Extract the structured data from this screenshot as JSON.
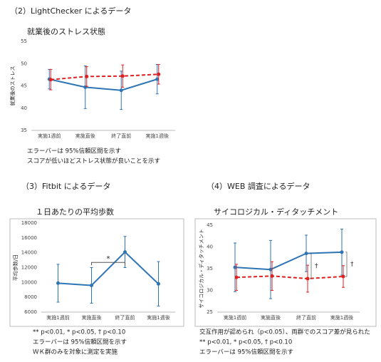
{
  "chart_data": [
    {
      "type": "line",
      "section": "（2）LightChecker によるデータ",
      "title": "就業後のストレス状態",
      "y_label": "就業後のストレス",
      "categories": [
        "実施1週前",
        "実施直後",
        "終了直前",
        "実施1週後"
      ],
      "series": [
        {
          "color": "#2e75b6",
          "dashed": false,
          "values": [
            46.5,
            44.7,
            44.0,
            46.5
          ],
          "error": [
            2.2,
            4.8,
            4.3,
            3.3
          ]
        },
        {
          "color": "#e02020",
          "dashed": true,
          "values": [
            46.4,
            47.1,
            47.2,
            47.6
          ],
          "error": [
            2.3,
            2.2,
            2.5,
            2.2
          ]
        }
      ],
      "ylim": [
        35,
        55
      ],
      "yticks": [
        35,
        40,
        45,
        50,
        55
      ],
      "frame": false,
      "notes": [
        "エラーバーは 95%信頼区間を示す",
        "スコアが低いほどストレス状態が良いことを示す"
      ],
      "annotations": []
    },
    {
      "type": "line",
      "section": "（3）Fitbit によるデータ",
      "title": "１日あたりの平均歩数",
      "y_label": "平均歩数/日",
      "categories": [
        "実施1週前",
        "実施直後",
        "終了直前",
        "実施1週後"
      ],
      "series": [
        {
          "color": "#2e75b6",
          "dashed": false,
          "values": [
            9900,
            9600,
            14100,
            9800
          ],
          "error": [
            2550,
            2400,
            2100,
            3000
          ]
        }
      ],
      "ylim": [
        6000,
        18000
      ],
      "yticks": [
        6000,
        8000,
        10000,
        12000,
        14000,
        16000,
        18000
      ],
      "frame": true,
      "notes": [
        "** p<0.01, * p<0.05, † p<0.10",
        "エラーバーは 95%信頼区間を示す",
        "ＷＫ群のみを対象に測定を実施"
      ],
      "annotations": [
        {
          "text": "*"
        }
      ]
    },
    {
      "type": "line",
      "section": "（4）WEB 調査によるデータ",
      "title": "サイコロジカル・ディタッチメント",
      "y_label": "サイコロジカル・ディタッチメント",
      "categories": [
        "実施1週前",
        "実施直後",
        "終了直前",
        "実施1週後"
      ],
      "series": [
        {
          "color": "#2e75b6",
          "dashed": false,
          "values": [
            35.3,
            34.8,
            38.5,
            38.8
          ],
          "error": [
            5.6,
            6.7,
            4.2,
            5.3
          ]
        },
        {
          "color": "#e02020",
          "dashed": true,
          "values": [
            33.0,
            33.3,
            32.7,
            33.2
          ],
          "error": [
            3.0,
            3.3,
            3.1,
            2.5
          ]
        }
      ],
      "ylim": [
        25,
        45
      ],
      "yticks": [
        25,
        30,
        35,
        40,
        45
      ],
      "frame": true,
      "notes": [
        "交互作用が認められ（p<0.05）、両群でのスコア差が見られた",
        "** p<0.01, * p<0.05, † p<0.10",
        "エラーバーは 95%信頼区間を示す"
      ],
      "annotations": [
        {
          "text": "†"
        },
        {
          "text": "†"
        }
      ]
    }
  ]
}
